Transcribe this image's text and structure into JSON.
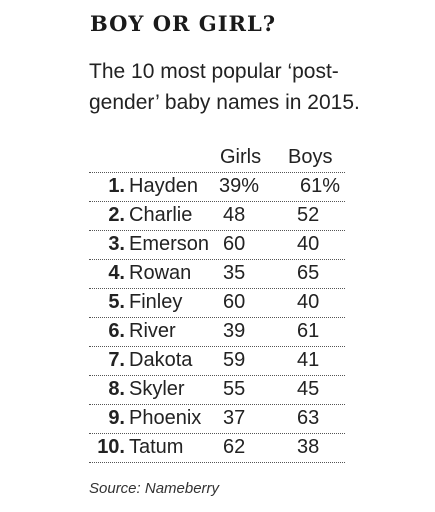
{
  "title": "BOY OR GIRL?",
  "subtitle": "The 10 most popular ‘post-gender’ baby names in 2015.",
  "source": "Source: Nameberry",
  "chart_data": {
    "type": "table",
    "title": "BOY OR GIRL?",
    "subtitle": "The 10 most popular ‘post-gender’ baby names in 2015.",
    "columns": [
      "Girls",
      "Boys"
    ],
    "rows": [
      {
        "rank": "1.",
        "name": "Hayden",
        "girls": "39%",
        "boys": "61%"
      },
      {
        "rank": "2.",
        "name": "Charlie",
        "girls": "48",
        "boys": "52"
      },
      {
        "rank": "3.",
        "name": "Emerson",
        "girls": "60",
        "boys": "40"
      },
      {
        "rank": "4.",
        "name": "Rowan",
        "girls": "35",
        "boys": "65"
      },
      {
        "rank": "5.",
        "name": "Finley",
        "girls": "60",
        "boys": "40"
      },
      {
        "rank": "6.",
        "name": "River",
        "girls": "39",
        "boys": "61"
      },
      {
        "rank": "7.",
        "name": "Dakota",
        "girls": "59",
        "boys": "41"
      },
      {
        "rank": "8.",
        "name": "Skyler",
        "girls": "55",
        "boys": "45"
      },
      {
        "rank": "9.",
        "name": "Phoenix",
        "girls": "37",
        "boys": "63"
      },
      {
        "rank": "10.",
        "name": "Tatum",
        "girls": "62",
        "boys": "38"
      }
    ],
    "source": "Source: Nameberry"
  }
}
